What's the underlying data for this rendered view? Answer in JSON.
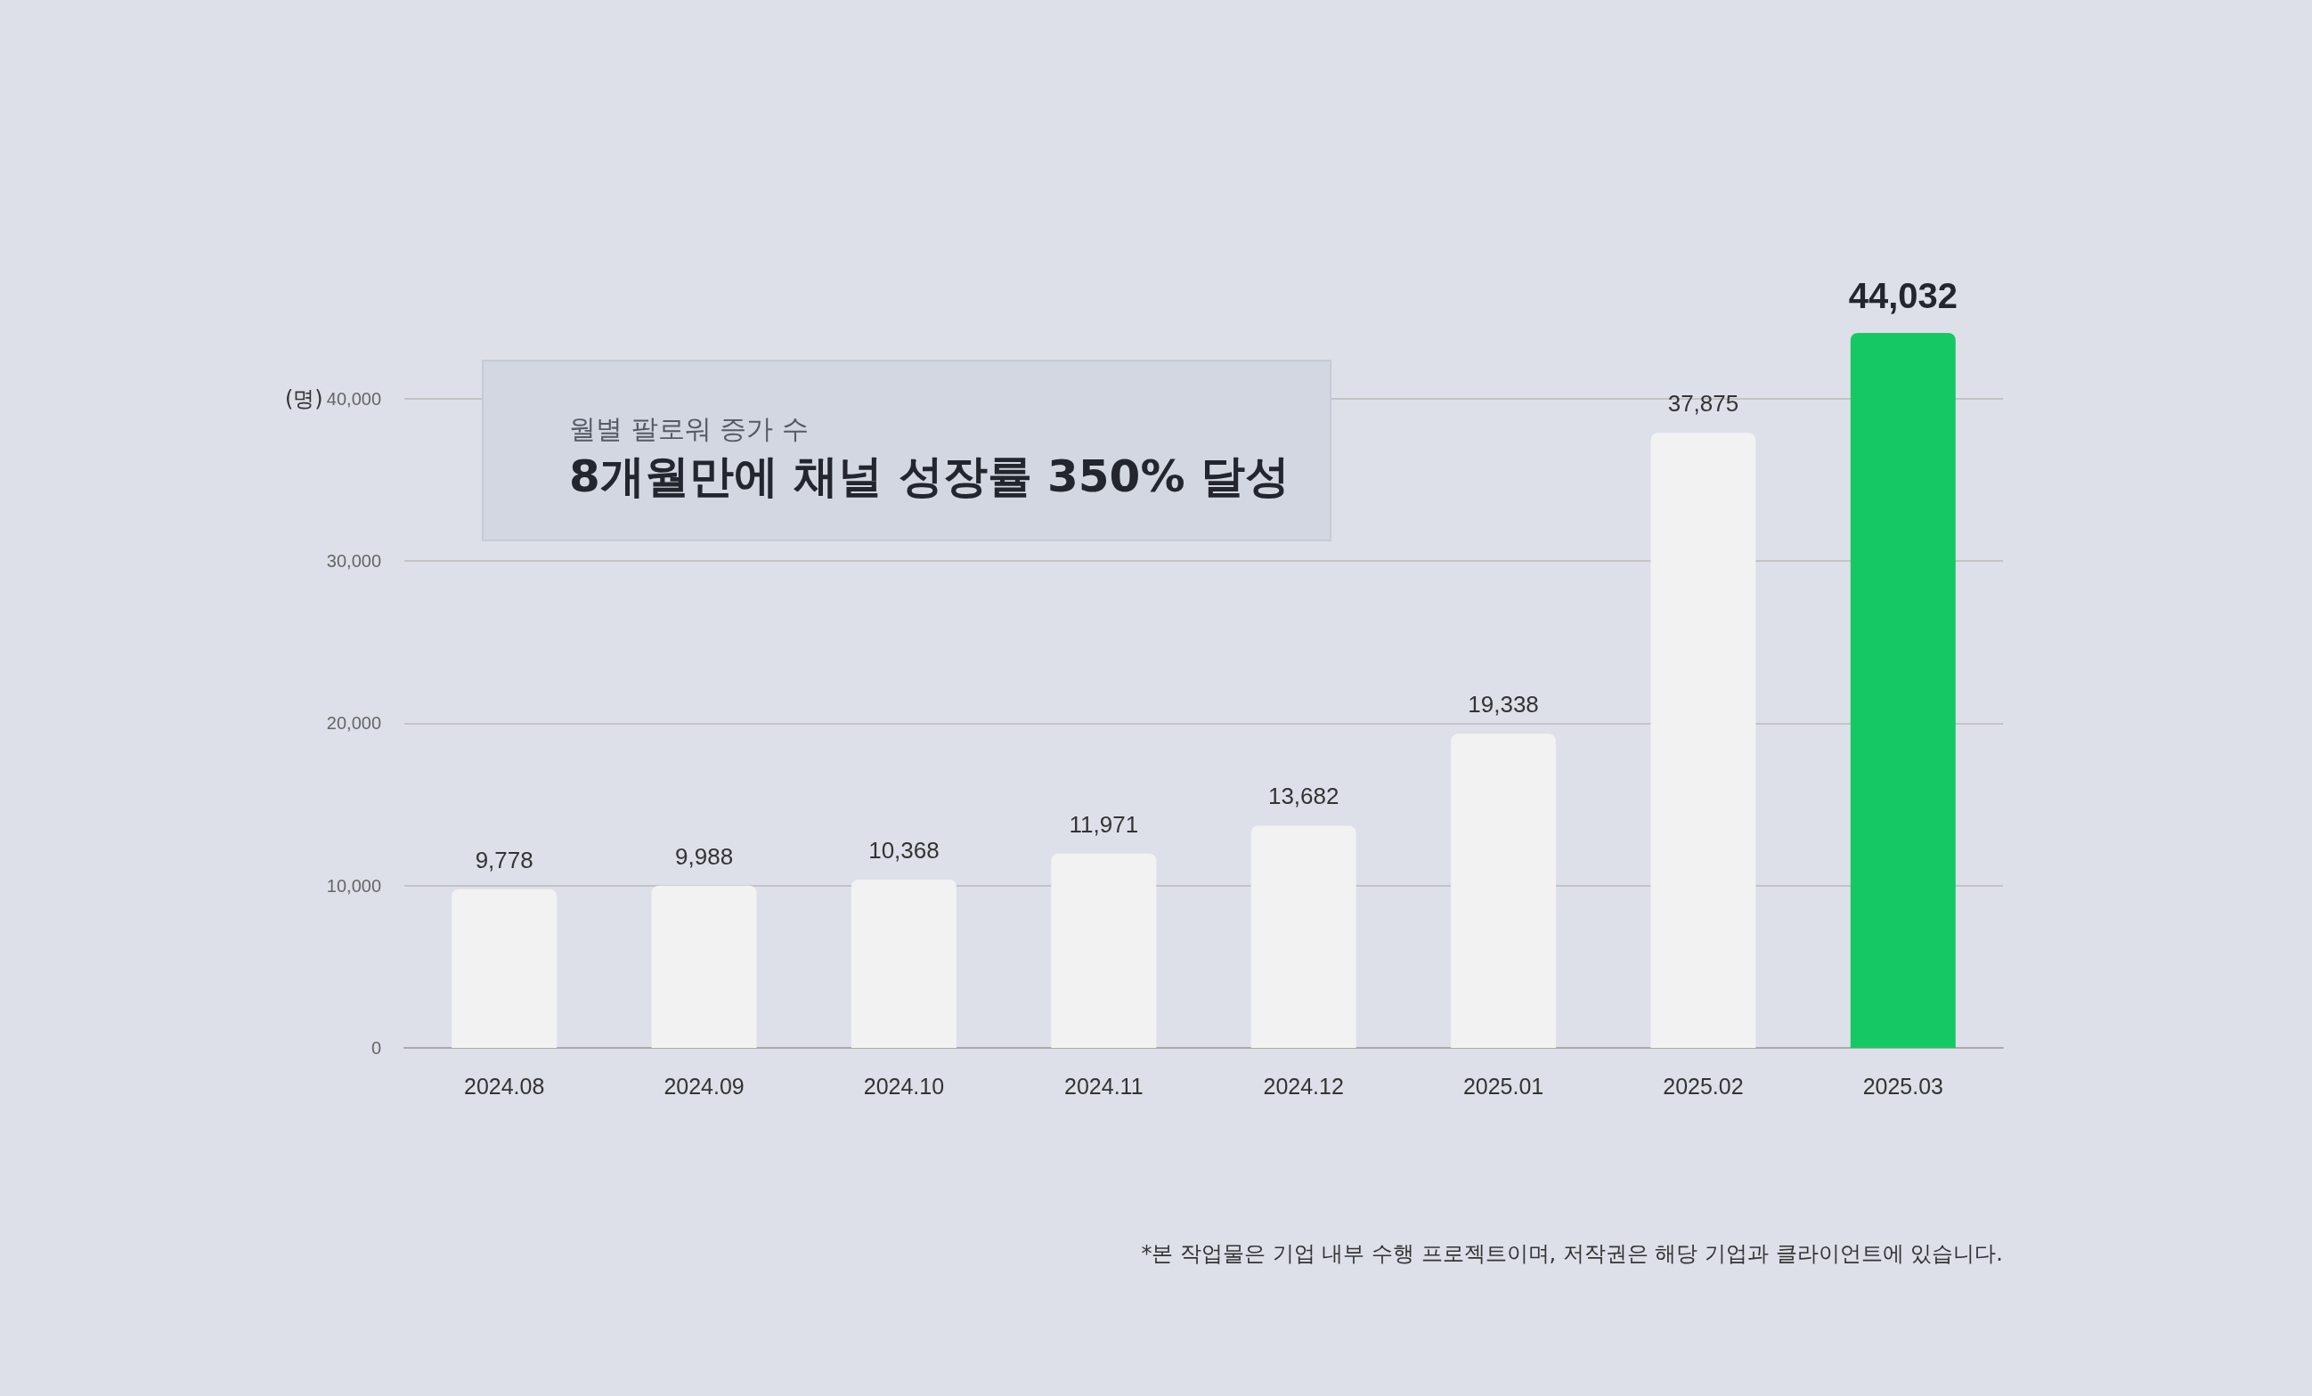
{
  "chart_data": {
    "type": "bar",
    "subtitle": "월별 팔로워 증가 수",
    "title": "8개월만에 채널 성장률 350% 달성",
    "ylabel": "(명)",
    "categories": [
      "2024.08",
      "2024.09",
      "2024.10",
      "2024.11",
      "2024.12",
      "2025.01",
      "2025.02",
      "2025.03"
    ],
    "values": [
      9778,
      9988,
      10368,
      11971,
      13682,
      19338,
      37875,
      44032
    ],
    "value_labels": [
      "9,778",
      "9,988",
      "10,368",
      "11,971",
      "13,682",
      "19,338",
      "37,875",
      "44,032"
    ],
    "colors": [
      "#f2f2f2",
      "#f2f2f2",
      "#f2f2f2",
      "#f2f2f2",
      "#f2f2f2",
      "#f2f2f2",
      "#f2f2f2",
      "#16c864"
    ],
    "ylim": [
      0,
      44032
    ],
    "yticks": [
      0,
      {
        "value": 10000,
        "label": "10,000"
      },
      {
        "value": 20000,
        "label": "20,000"
      },
      {
        "value": 30000,
        "label": "30,000"
      },
      {
        "value": 40000,
        "label": "40,000"
      }
    ],
    "grid": "y",
    "annotations": [
      "*본 작업물은 기업 내부 수행 프로젝트이며, 저작권은 해당 기업과 클라이언트에 있습니다."
    ]
  }
}
